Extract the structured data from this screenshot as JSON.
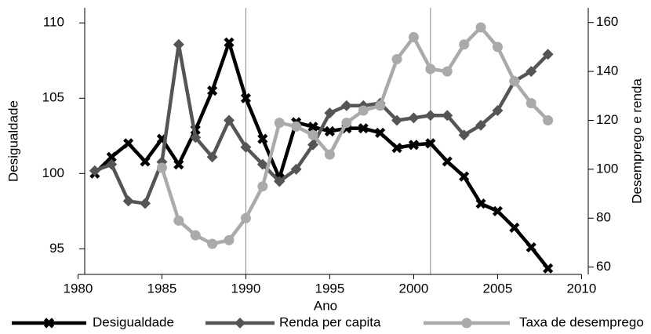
{
  "chart_data": {
    "type": "line",
    "x_label": "Ano",
    "y_label": "Desigualdade",
    "y2_label": "Desemprego e renda",
    "x": [
      1981,
      1982,
      1983,
      1984,
      1985,
      1986,
      1987,
      1988,
      1989,
      1990,
      1991,
      1992,
      1993,
      1994,
      1995,
      1996,
      1997,
      1998,
      1999,
      2000,
      2001,
      2002,
      2003,
      2004,
      2005,
      2006,
      2007,
      2008
    ],
    "series": [
      {
        "name": "Desigualdade",
        "color": "#000000",
        "marker": "cross",
        "axis": "y",
        "values": [
          100.0,
          101.1,
          102.0,
          100.8,
          102.3,
          100.6,
          102.9,
          105.5,
          108.7,
          105.0,
          102.3,
          99.7,
          103.4,
          103.1,
          102.8,
          103.0,
          103.0,
          102.7,
          101.7,
          101.9,
          102.0,
          100.8,
          99.8,
          98.0,
          97.5,
          96.4,
          95.1,
          93.7
        ]
      },
      {
        "name": "Renda per capita",
        "color": "#555555",
        "marker": "diamond",
        "axis": "y2",
        "values": [
          99.4,
          102,
          87,
          86,
          103,
          151,
          113,
          105,
          120,
          109,
          102,
          95,
          100,
          110,
          123,
          126,
          126,
          127,
          120,
          121,
          122,
          122,
          114,
          118,
          124,
          136,
          140,
          147
        ]
      },
      {
        "name": "Taxa de desemprego",
        "color": "#aaaaaa",
        "marker": "circle",
        "axis": "y2",
        "values": [
          null,
          null,
          null,
          null,
          100.6,
          79,
          73,
          69.5,
          71,
          80,
          93,
          119,
          117.5,
          114,
          106,
          119,
          124,
          126,
          145,
          154,
          141,
          140,
          151,
          158,
          150,
          136,
          127,
          120
        ]
      }
    ],
    "xlim": [
      1980.4,
      2010.4
    ],
    "xticks": [
      1980,
      1985,
      1990,
      1995,
      2000,
      2005,
      2010
    ],
    "ylim": [
      93.3,
      111
    ],
    "yticks": [
      95,
      100,
      105,
      110
    ],
    "y2lim": [
      57,
      166
    ],
    "y2ticks": [
      60,
      80,
      100,
      120,
      140,
      160
    ],
    "xlines": [
      1990,
      2001
    ]
  }
}
